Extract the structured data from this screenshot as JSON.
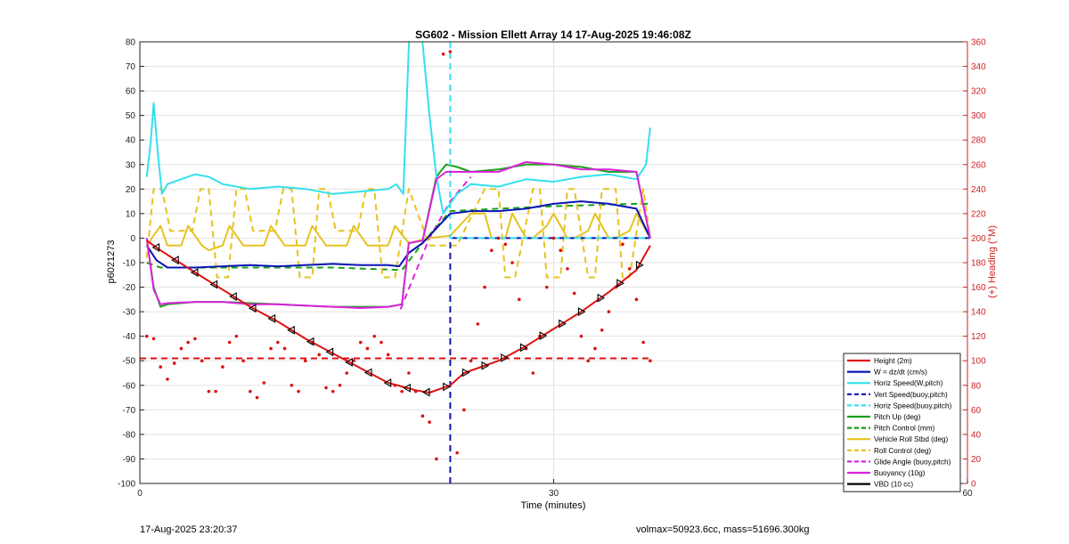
{
  "figure": {
    "timestamp": "17-Aug-2025 23:20:37",
    "mass_text": "volmax=50923.6cc, mass=51696.300kg"
  },
  "chart_data": {
    "type": "line",
    "title": "SG602 - Mission Ellett Array 14 17-Aug-2025 19:46:08Z",
    "xlabel": "Time (minutes)",
    "ylabel": "p6021273",
    "y2label": "(+) Heading (°M)",
    "xlim": [
      0,
      60
    ],
    "ylim": [
      -100,
      80
    ],
    "y2lim": [
      0,
      360
    ],
    "xticks": [
      0,
      30,
      60
    ],
    "yticks": [
      80,
      70,
      60,
      50,
      40,
      30,
      20,
      10,
      0,
      -10,
      -20,
      -30,
      -40,
      -50,
      -60,
      -70,
      -80,
      -90,
      -100
    ],
    "y2ticks": [
      360,
      340,
      320,
      300,
      280,
      260,
      240,
      220,
      200,
      180,
      160,
      140,
      120,
      100,
      80,
      60,
      40,
      20,
      0
    ],
    "grid": true,
    "legend_position": "bottom-right",
    "colors": {
      "red": "#dd1111",
      "blue": "#0a14b4",
      "cyan": "#33e0ee",
      "green": "#1aa01a",
      "yellow": "#e6c21e",
      "magenta": "#dd22dd",
      "black": "#000000",
      "axis2": "#cc2222"
    },
    "series": [
      {
        "name": "Height (2m)",
        "color": "#dd1111",
        "style": "solid",
        "x": [
          0.5,
          1.5,
          4,
          6,
          8,
          10,
          12,
          14,
          16,
          18,
          20,
          21,
          22.5,
          23.5,
          26,
          28,
          30,
          32,
          34,
          36,
          37
        ],
        "y": [
          -1,
          -5,
          -14,
          -21,
          -28,
          -34,
          -41,
          -47,
          -53,
          -59,
          -62,
          -63,
          -60,
          -55,
          -50,
          -44,
          -37,
          -30,
          -22,
          -13,
          -3
        ]
      },
      {
        "name": "W = dz/dt (cm/s)",
        "color": "#0a14b4",
        "style": "solid",
        "x": [
          0.5,
          1.2,
          2,
          4,
          6,
          8,
          10,
          12,
          14,
          16,
          18,
          18.8,
          19.5,
          20.5,
          21.5,
          22.5,
          24,
          26,
          28,
          30,
          32,
          34,
          36,
          37
        ],
        "y": [
          -3,
          -9,
          -12,
          -12,
          -11.5,
          -11,
          -11.5,
          -11,
          -10.5,
          -11,
          -11,
          -11.5,
          -6,
          -2,
          4,
          10,
          11,
          11,
          12,
          14,
          15,
          14,
          12,
          0
        ]
      },
      {
        "name": "Horiz Speed(W,pitch)",
        "color": "#33e0ee",
        "style": "solid",
        "x": [
          0.5,
          0.8,
          1,
          1.3,
          1.6,
          2,
          3,
          4,
          5,
          6,
          8,
          10,
          12,
          14,
          16,
          18,
          18.6,
          19.1,
          19.5,
          20,
          20.4,
          21,
          21.5,
          22,
          23,
          24,
          26,
          28,
          30,
          32,
          34,
          36,
          36.7,
          37
        ],
        "y": [
          25,
          40,
          55,
          35,
          18,
          22,
          24,
          26,
          25,
          22,
          20,
          21,
          20,
          18,
          19,
          20,
          22,
          18,
          78,
          120,
          85,
          50,
          25,
          10,
          18,
          22,
          21,
          24,
          23,
          25,
          26,
          24,
          30,
          45
        ]
      },
      {
        "name": "Vert Speed(buoy,pitch)",
        "color": "#0a14b4",
        "style": "dash",
        "x": [
          22.5,
          22.5,
          22.5,
          37
        ],
        "y": [
          -100,
          0,
          0,
          0
        ]
      },
      {
        "name": "Horiz Speed(buoy,pitch)",
        "color": "#33e0ee",
        "style": "dash",
        "x": [
          22.5,
          22.5,
          22.5,
          37
        ],
        "y": [
          80,
          0,
          0,
          0
        ]
      },
      {
        "name": "Pitch Up (deg)",
        "color": "#1aa01a",
        "style": "solid",
        "x": [
          0.5,
          1,
          1.5,
          2,
          4,
          6,
          8,
          10,
          12,
          14,
          16,
          18,
          19,
          19.5,
          20.5,
          21.5,
          22.2,
          23,
          24,
          26,
          28,
          30,
          32,
          34,
          36,
          37
        ],
        "y": [
          0,
          -20,
          -28,
          -27,
          -26,
          -26,
          -26.5,
          -27,
          -27.5,
          -28,
          -28,
          -28,
          -27,
          -2,
          -1,
          25,
          30,
          29,
          27,
          28,
          30,
          30,
          29,
          27,
          27,
          0
        ]
      },
      {
        "name": "Pitch Control (mm)",
        "color": "#1aa01a",
        "style": "dash",
        "x": [
          0.5,
          1.5,
          8,
          14,
          19,
          20.5,
          22.5,
          26,
          30,
          36,
          37
        ],
        "y": [
          -10,
          -12,
          -12,
          -12,
          -13,
          -2,
          11,
          12,
          13,
          14,
          14
        ]
      },
      {
        "name": "Vehicle Roll Stbd (deg)",
        "color": "#e6c21e",
        "style": "solid",
        "x": [
          0.5,
          1.5,
          2,
          3,
          3.5,
          4.5,
          5,
          6,
          6.5,
          7.5,
          8,
          9,
          9.5,
          10.5,
          11,
          12,
          12.5,
          13.5,
          14,
          15,
          15.5,
          16.5,
          17,
          18,
          18.5,
          19.5,
          21,
          22.5,
          24,
          25,
          25.5,
          26.5,
          27,
          28,
          28.5,
          29.5,
          30,
          31,
          31.5,
          32.5,
          33,
          34,
          34.5,
          35.5,
          36,
          37
        ],
        "y": [
          -3,
          5,
          -3,
          -3,
          5,
          -3,
          -5,
          -3,
          5,
          -3,
          -3,
          -3,
          5,
          -3,
          -3,
          -3,
          5,
          -3,
          -3,
          -3,
          5,
          -3,
          -3,
          -3,
          5,
          -2,
          0,
          1,
          10,
          10,
          0,
          0,
          10,
          0,
          0,
          5,
          10,
          0,
          0,
          3,
          10,
          0,
          0,
          3,
          10,
          0
        ]
      },
      {
        "name": "Roll Control (deg)",
        "color": "#e6c21e",
        "style": "dash",
        "x": [
          0.5,
          1,
          1.6,
          2.2,
          3.8,
          4.4,
          5,
          5.6,
          6.4,
          7,
          7.6,
          8.2,
          9.8,
          10.4,
          11,
          11.6,
          12.5,
          13,
          13.6,
          14.2,
          15.8,
          16.4,
          17,
          17.6,
          18.5,
          19.5,
          21,
          23,
          25,
          26,
          26.5,
          27.2,
          28.5,
          29,
          29.5,
          30.5,
          31,
          31.5,
          32.5,
          33,
          33.5,
          34.5,
          35,
          35.5,
          36.5,
          37
        ],
        "y": [
          -8,
          20,
          20,
          3,
          3,
          20,
          20,
          -16,
          -16,
          20,
          20,
          3,
          3,
          20,
          20,
          -16,
          -16,
          20,
          20,
          3,
          3,
          20,
          20,
          -16,
          -16,
          20,
          -3,
          -3,
          20,
          20,
          -16,
          -16,
          20,
          20,
          -16,
          -16,
          20,
          20,
          -16,
          -16,
          20,
          20,
          -16,
          -16,
          20,
          0
        ]
      },
      {
        "name": "Glide Angle (buoy,pitch)",
        "color": "#dd22dd",
        "style": "dash",
        "x": [
          18.9,
          21,
          22.5,
          24
        ],
        "y": [
          -29,
          0,
          15,
          25
        ]
      },
      {
        "name": "Buoyancy (10g)",
        "color": "#dd22dd",
        "style": "solid",
        "x": [
          0.5,
          1,
          1.5,
          2,
          4,
          6,
          8,
          10,
          12,
          14,
          16,
          18,
          19,
          19.5,
          20.5,
          21.5,
          22.2,
          23,
          24,
          26,
          28,
          30,
          32,
          34,
          36,
          37
        ],
        "y": [
          0,
          -21,
          -27,
          -26.5,
          -26,
          -26,
          -27,
          -27,
          -27.5,
          -28,
          -28.5,
          -28,
          -27,
          -2,
          -1,
          24,
          27,
          27,
          27,
          27,
          31,
          30,
          28,
          28,
          27,
          0
        ]
      },
      {
        "name": "VBD (10 cc)",
        "color": "#000000",
        "style": "solid",
        "x": [
          0.5,
          1.5,
          3,
          18.5,
          19.5,
          20.5,
          21.5,
          22.5,
          24,
          25,
          26,
          27,
          28,
          30,
          32,
          34,
          36,
          36.7,
          37
        ],
        "y": [
          2,
          -11,
          -12,
          -12,
          -8,
          -3,
          3,
          11,
          12,
          12,
          12,
          20,
          22,
          23,
          22,
          21,
          22,
          20,
          12
        ]
      }
    ],
    "heading_points": {
      "name": "(+) Heading (°M)",
      "color": "#dd1111",
      "style": "dots",
      "x": [
        0.5,
        1,
        1.5,
        2,
        2.5,
        3,
        3.5,
        4,
        4.5,
        5,
        5.5,
        6,
        6.5,
        7,
        7.5,
        8,
        8.5,
        9,
        9.5,
        10,
        10.5,
        11,
        11.5,
        12,
        12.5,
        13,
        13.5,
        14,
        14.5,
        15,
        15.5,
        16,
        16.5,
        17,
        17.5,
        18,
        18.5,
        19,
        19.5,
        20,
        20.5,
        21,
        21.5,
        22,
        22.5,
        23,
        23.5,
        24,
        24.5,
        25,
        25.5,
        26,
        26.5,
        27,
        27.5,
        28,
        28.5,
        29,
        29.5,
        30,
        30.5,
        31,
        31.5,
        32,
        32.5,
        33,
        33.5,
        34,
        34.5,
        35,
        35.5,
        36,
        36.5,
        37
      ],
      "y": [
        120,
        118,
        95,
        85,
        98,
        110,
        115,
        118,
        100,
        75,
        75,
        95,
        115,
        120,
        100,
        75,
        70,
        82,
        110,
        115,
        110,
        80,
        75,
        100,
        115,
        105,
        78,
        75,
        80,
        90,
        100,
        115,
        110,
        120,
        115,
        105,
        80,
        75,
        90,
        75,
        55,
        50,
        20,
        350,
        352,
        25,
        60,
        100,
        130,
        160,
        190,
        200,
        195,
        180,
        150,
        110,
        90,
        120,
        160,
        200,
        190,
        175,
        155,
        120,
        100,
        110,
        125,
        140,
        160,
        195,
        175,
        150,
        115,
        100
      ],
      "mean": 102
    }
  }
}
